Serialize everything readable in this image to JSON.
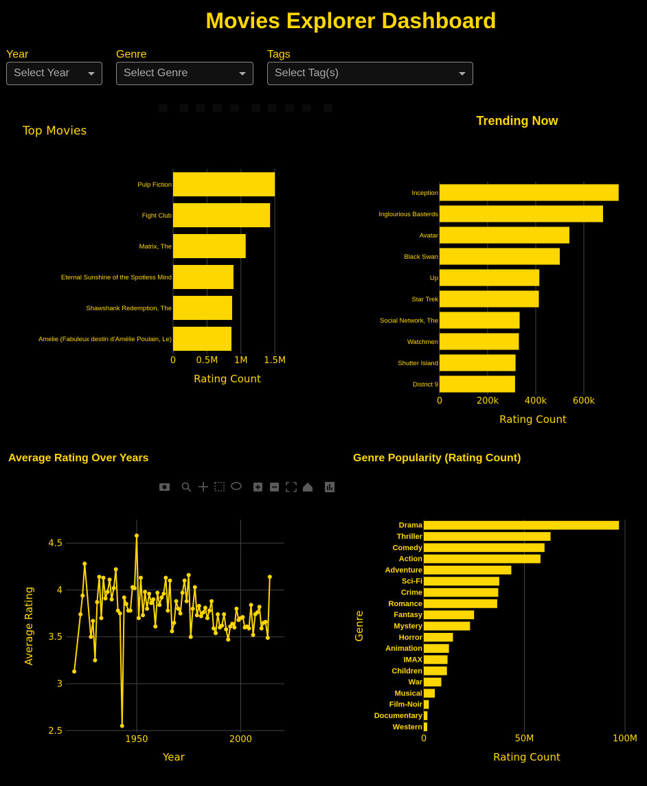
{
  "page": {
    "title": "Movies Explorer Dashboard"
  },
  "filters": {
    "year": {
      "label": "Year",
      "placeholder": "Select Year"
    },
    "genre": {
      "label": "Genre",
      "placeholder": "Select Genre"
    },
    "tags": {
      "label": "Tags",
      "placeholder": "Select Tag(s)"
    }
  },
  "colors": {
    "accent": "#FFD700",
    "background": "#000000",
    "grid": "#444444"
  },
  "chart_data": [
    {
      "id": "top-movies",
      "type": "bar",
      "orientation": "horizontal",
      "title": "Top Movies",
      "xlabel": "Rating Count",
      "ylabel": "",
      "categories": [
        "Pulp Fiction",
        "Fight Club",
        "Matrix, The",
        "Eternal Sunshine of the Spotless Mind",
        "Shawshank Redemption, The",
        "Amelie (Fabuleux destin d'Amélie Poulain, Le)"
      ],
      "values": [
        1500000,
        1430000,
        1070000,
        890000,
        870000,
        860000
      ],
      "xlim": [
        0,
        1650000
      ],
      "xticks": [
        0,
        500000,
        1000000,
        1500000
      ],
      "xtick_labels": [
        "0",
        "0.5M",
        "1M",
        "1.5M"
      ]
    },
    {
      "id": "trending-now",
      "type": "bar",
      "orientation": "horizontal",
      "title": "Trending Now",
      "xlabel": "Rating Count",
      "ylabel": "",
      "categories": [
        "Inception",
        "Inglourious Basterds",
        "Avatar",
        "Black Swan",
        "Up",
        "Star Trek",
        "Social Network, The",
        "Watchmen",
        "Shutter Island",
        "District 9"
      ],
      "values": [
        745000,
        680000,
        540000,
        500000,
        415000,
        413000,
        333000,
        330000,
        316000,
        314000
      ],
      "xlim": [
        0,
        800000
      ],
      "xticks": [
        0,
        200000,
        400000,
        600000
      ],
      "xtick_labels": [
        "0",
        "200k",
        "400k",
        "600k"
      ]
    },
    {
      "id": "avg-rating-years",
      "type": "line",
      "title": "Average Rating Over Years",
      "xlabel": "Year",
      "ylabel": "Average Rating",
      "xlim": [
        1916,
        2021
      ],
      "ylim": [
        2.48,
        4.75
      ],
      "xticks": [
        1950,
        2000
      ],
      "yticks": [
        2.5,
        3,
        3.5,
        4,
        4.5
      ],
      "ytick_labels": [
        "2.5",
        "3",
        "3.5",
        "4",
        "4.5"
      ],
      "x": [
        1920,
        1923,
        1924,
        1925,
        1928,
        1929,
        1930,
        1931,
        1932,
        1933,
        1934,
        1935,
        1936,
        1937,
        1938,
        1939,
        1940,
        1941,
        1942,
        1943,
        1944,
        1945,
        1946,
        1947,
        1948,
        1949,
        1950,
        1951,
        1952,
        1953,
        1954,
        1955,
        1956,
        1957,
        1958,
        1959,
        1960,
        1961,
        1962,
        1963,
        1964,
        1965,
        1966,
        1967,
        1968,
        1969,
        1970,
        1971,
        1972,
        1973,
        1974,
        1975,
        1976,
        1977,
        1978,
        1979,
        1980,
        1981,
        1982,
        1983,
        1984,
        1985,
        1986,
        1987,
        1988,
        1989,
        1990,
        1991,
        1992,
        1993,
        1994,
        1995,
        1996,
        1997,
        1998,
        1999,
        2000,
        2001,
        2002,
        2003,
        2004,
        2005,
        2006,
        2007,
        2008,
        2009,
        2010,
        2011,
        2012,
        2013,
        2014
      ],
      "values": [
        3.13,
        3.74,
        3.94,
        4.28,
        3.5,
        3.67,
        3.25,
        3.87,
        4.14,
        3.7,
        4.13,
        3.91,
        3.98,
        4.11,
        3.9,
        4.02,
        4.22,
        3.78,
        3.75,
        2.55,
        3.92,
        3.85,
        3.78,
        3.78,
        4.03,
        4.02,
        4.58,
        3.7,
        4.13,
        3.73,
        3.98,
        3.8,
        3.96,
        3.86,
        3.9,
        3.61,
        3.97,
        3.84,
        3.92,
        3.96,
        4.13,
        3.78,
        4.1,
        3.56,
        3.65,
        3.88,
        3.8,
        3.75,
        3.97,
        4.1,
        3.88,
        4.16,
        3.5,
        3.8,
        4.03,
        3.73,
        3.83,
        3.72,
        3.76,
        3.81,
        3.7,
        3.78,
        3.88,
        3.59,
        3.54,
        3.74,
        3.6,
        3.62,
        3.74,
        3.58,
        3.47,
        3.61,
        3.64,
        3.6,
        3.8,
        3.68,
        3.7,
        3.71,
        3.6,
        3.61,
        3.59,
        3.84,
        3.52,
        3.74,
        3.76,
        3.82,
        3.59,
        3.65,
        3.66,
        3.49,
        4.14
      ]
    },
    {
      "id": "genre-popularity",
      "type": "bar",
      "orientation": "horizontal",
      "title": "Genre Popularity (Rating Count)",
      "xlabel": "Rating Count",
      "ylabel": "Genre",
      "categories": [
        "Drama",
        "Thriller",
        "Comedy",
        "Action",
        "Adventure",
        "Sci-Fi",
        "Crime",
        "Romance",
        "Fantasy",
        "Mystery",
        "Horror",
        "Animation",
        "IMAX",
        "Children",
        "War",
        "Musical",
        "Film-Noir",
        "Documentary",
        "Western"
      ],
      "values": [
        97000000,
        63000000,
        60000000,
        58000000,
        43500000,
        37500000,
        37000000,
        36500000,
        25000000,
        23000000,
        14500000,
        12500000,
        11800000,
        11500000,
        8700000,
        5500000,
        2500000,
        1800000,
        1700000
      ],
      "xlim": [
        0,
        100000000
      ],
      "xticks": [
        0,
        50000000,
        100000000
      ],
      "xtick_labels": [
        "0",
        "50M",
        "100M"
      ]
    }
  ]
}
